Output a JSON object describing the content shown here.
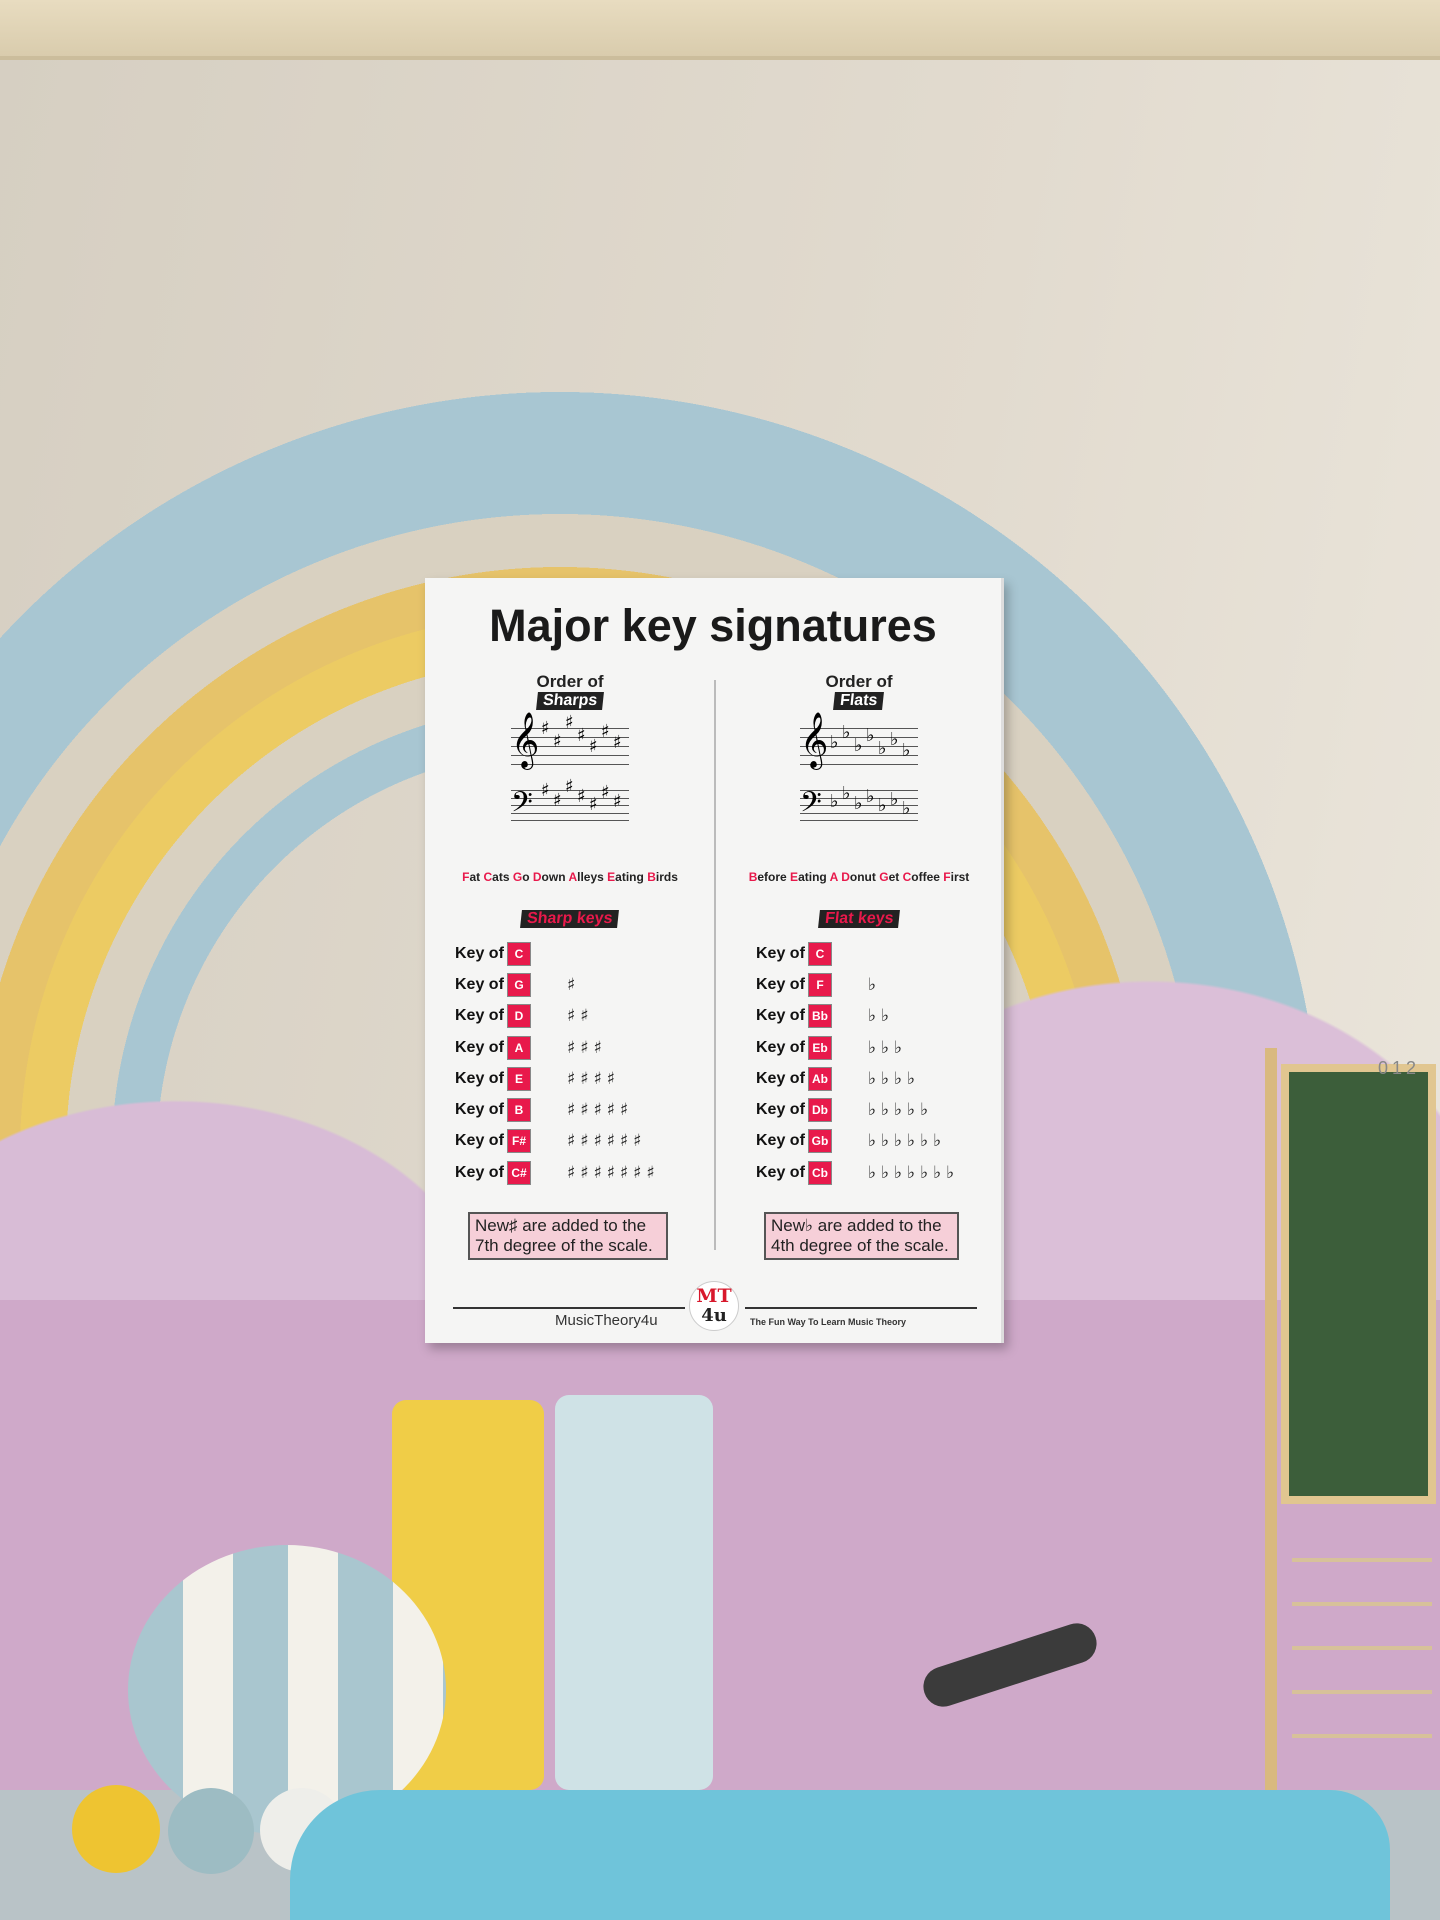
{
  "poster": {
    "title": "Major key signatures",
    "sharps": {
      "order_label": "Order of",
      "order_highlight": "Sharps",
      "mnemonic": [
        {
          "i": "F",
          "r": "at"
        },
        {
          "i": "C",
          "r": "ats"
        },
        {
          "i": "G",
          "r": "o"
        },
        {
          "i": "D",
          "r": "own"
        },
        {
          "i": "A",
          "r": "lleys"
        },
        {
          "i": "E",
          "r": "ating"
        },
        {
          "i": "B",
          "r": "irds"
        }
      ],
      "keys_heading": "Sharp keys",
      "symbol": "♯",
      "keys": [
        {
          "label": "Key of",
          "key": "C",
          "count": 0
        },
        {
          "label": "Key of",
          "key": "G",
          "count": 1
        },
        {
          "label": "Key of",
          "key": "D",
          "count": 2
        },
        {
          "label": "Key of",
          "key": "A",
          "count": 3
        },
        {
          "label": "Key of",
          "key": "E",
          "count": 4
        },
        {
          "label": "Key of",
          "key": "B",
          "count": 5
        },
        {
          "label": "Key of",
          "key": "F#",
          "count": 6
        },
        {
          "label": "Key of",
          "key": "C#",
          "count": 7
        }
      ],
      "note": "New♯ are added to the 7th degree of the scale."
    },
    "flats": {
      "order_label": "Order of",
      "order_highlight": "Flats",
      "mnemonic": [
        {
          "i": "B",
          "r": "efore"
        },
        {
          "i": "E",
          "r": "ating"
        },
        {
          "i": "A",
          "r": ""
        },
        {
          "i": "D",
          "r": "onut"
        },
        {
          "i": "G",
          "r": "et"
        },
        {
          "i": "C",
          "r": "offee"
        },
        {
          "i": "F",
          "r": "irst"
        }
      ],
      "keys_heading": "Flat keys",
      "symbol": "♭",
      "keys": [
        {
          "label": "Key of",
          "key": "C",
          "count": 0
        },
        {
          "label": "Key of",
          "key": "F",
          "count": 1
        },
        {
          "label": "Key of",
          "key": "Bb",
          "count": 2
        },
        {
          "label": "Key of",
          "key": "Eb",
          "count": 3
        },
        {
          "label": "Key of",
          "key": "Ab",
          "count": 4
        },
        {
          "label": "Key of",
          "key": "Db",
          "count": 5
        },
        {
          "label": "Key of",
          "key": "Gb",
          "count": 6
        },
        {
          "label": "Key of",
          "key": "Cb",
          "count": 7
        }
      ],
      "note": "New♭ are added to the 4th degree of the scale."
    },
    "footer": {
      "brand": "MusicTheory4u",
      "logo_top": "MT",
      "logo_bottom": "4u",
      "tagline": "The Fun Way To Learn Music Theory"
    },
    "accent": "#e8194b"
  },
  "scene": {
    "abacus_counter": "012"
  }
}
